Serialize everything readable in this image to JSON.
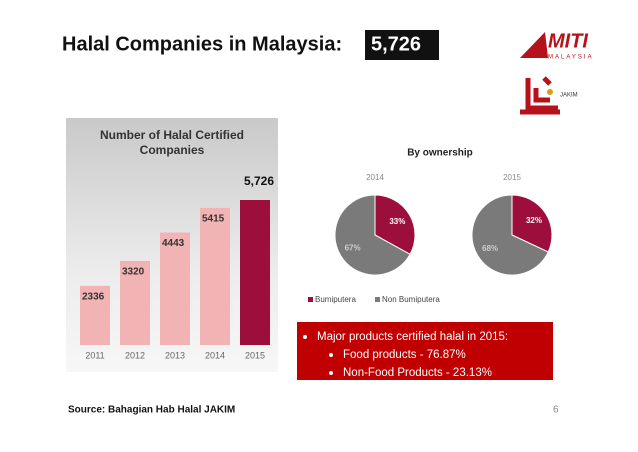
{
  "header": {
    "title": "Halal Companies in Malaysia:",
    "highlight": "5,726"
  },
  "logos": {
    "miti": "MITI",
    "miti_sub": "MALAYSIA",
    "jakim": "JAKIM"
  },
  "chart_data": [
    {
      "type": "bar",
      "title": "Number of Halal Certified Companies",
      "categories": [
        "2011",
        "2012",
        "2013",
        "2014",
        "2015"
      ],
      "values": [
        2336,
        3320,
        4443,
        5415,
        5726
      ],
      "value_labels": [
        "2336",
        "3320",
        "4443",
        "5415",
        "5,726"
      ],
      "colors": [
        "#f2b3b5",
        "#f2b3b5",
        "#f2b3b5",
        "#f2b3b5",
        "#9c0f3c"
      ]
    },
    {
      "type": "pie",
      "title": "By ownership",
      "categories": [
        "Bumiputera",
        "Non Bumiputera"
      ],
      "colors": [
        "#9c0f3c",
        "#7a7a7a"
      ],
      "series": [
        {
          "name": "2014",
          "values": [
            33,
            67
          ],
          "value_labels": [
            "33%",
            "67%"
          ]
        },
        {
          "name": "2015",
          "values": [
            32,
            68
          ],
          "value_labels": [
            "32%",
            "68%"
          ]
        }
      ]
    }
  ],
  "callout": {
    "items": [
      "Major products certified halal in 2015:",
      "Food products - 76.87%",
      "Non-Food Products - 23.13%"
    ]
  },
  "footer": {
    "source": "Source: Bahagian Hab Halal JAKIM",
    "page": 6
  }
}
